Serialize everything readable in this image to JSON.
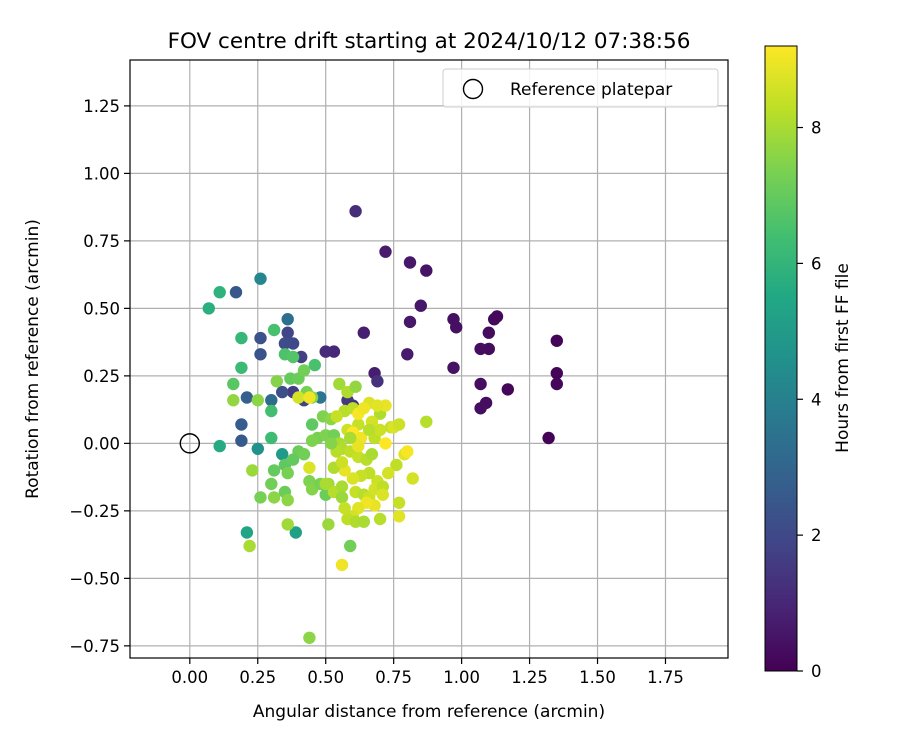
{
  "chart_data": {
    "type": "scatter",
    "title": "FOV centre drift starting at 2024/10/12 07:38:56",
    "xlabel": "Angular distance from reference (arcmin)",
    "ylabel": "Rotation from reference (arcmin)",
    "xlim": [
      -0.22,
      1.98
    ],
    "ylim": [
      -0.795,
      1.42
    ],
    "x_ticks": [
      0.0,
      0.25,
      0.5,
      0.75,
      1.0,
      1.25,
      1.5,
      1.75
    ],
    "x_tick_labels": [
      "0.00",
      "0.25",
      "0.50",
      "0.75",
      "1.00",
      "1.25",
      "1.50",
      "1.75"
    ],
    "y_ticks": [
      -0.75,
      -0.5,
      -0.25,
      0.0,
      0.25,
      0.5,
      0.75,
      1.0,
      1.25
    ],
    "y_tick_labels": [
      "−0.75",
      "−0.50",
      "−0.25",
      "0.00",
      "0.25",
      "0.50",
      "0.75",
      "1.00",
      "1.25"
    ],
    "grid": true,
    "legend": {
      "placement": "top-right",
      "entries": [
        "Reference platepar"
      ]
    },
    "reference_point": {
      "name": "Reference platepar",
      "x": 0.0,
      "y": 0.0
    },
    "colorbar": {
      "label": "Hours from first FF file",
      "colormap": "viridis",
      "range": [
        0,
        9.2
      ],
      "ticks": [
        0,
        2,
        4,
        6,
        8
      ],
      "tick_labels": [
        "0",
        "2",
        "4",
        "6",
        "8"
      ]
    },
    "points": [
      [
        1.32,
        0.02,
        0.05
      ],
      [
        1.35,
        0.38,
        0.1
      ],
      [
        1.35,
        0.26,
        0.1
      ],
      [
        1.35,
        0.22,
        0.15
      ],
      [
        1.17,
        0.2,
        0.15
      ],
      [
        1.13,
        0.47,
        0.2
      ],
      [
        1.12,
        0.46,
        0.2
      ],
      [
        1.1,
        0.41,
        0.25
      ],
      [
        1.1,
        0.35,
        0.25
      ],
      [
        1.07,
        0.35,
        0.3
      ],
      [
        1.09,
        0.15,
        0.3
      ],
      [
        1.07,
        0.13,
        0.35
      ],
      [
        1.07,
        0.22,
        0.35
      ],
      [
        0.98,
        0.43,
        0.4
      ],
      [
        0.97,
        0.46,
        0.4
      ],
      [
        0.97,
        0.28,
        0.45
      ],
      [
        0.87,
        0.64,
        0.5
      ],
      [
        0.85,
        0.51,
        0.55
      ],
      [
        0.81,
        0.45,
        0.6
      ],
      [
        0.81,
        0.67,
        0.6
      ],
      [
        0.8,
        0.33,
        0.65
      ],
      [
        0.72,
        0.71,
        0.7
      ],
      [
        0.68,
        0.26,
        0.75
      ],
      [
        0.64,
        0.41,
        0.8
      ],
      [
        0.61,
        0.86,
        1.2
      ],
      [
        0.69,
        0.23,
        1.3
      ],
      [
        0.6,
        0.14,
        1.4
      ],
      [
        0.58,
        0.16,
        1.5
      ],
      [
        0.53,
        0.34,
        1.0
      ],
      [
        0.5,
        0.34,
        1.1
      ],
      [
        0.38,
        0.19,
        1.6
      ],
      [
        0.41,
        0.32,
        1.7
      ],
      [
        0.42,
        0.16,
        1.8
      ],
      [
        0.36,
        0.41,
        1.9
      ],
      [
        0.38,
        0.37,
        2.0
      ],
      [
        0.35,
        0.37,
        2.1
      ],
      [
        0.34,
        0.19,
        2.2
      ],
      [
        0.26,
        0.39,
        2.3
      ],
      [
        0.26,
        0.33,
        2.4
      ],
      [
        0.17,
        0.56,
        2.5
      ],
      [
        0.19,
        0.01,
        2.6
      ],
      [
        0.19,
        0.07,
        2.7
      ],
      [
        0.21,
        0.17,
        2.8
      ],
      [
        0.3,
        0.16,
        3.2
      ],
      [
        0.36,
        0.46,
        3.4
      ],
      [
        0.48,
        0.17,
        3.6
      ],
      [
        0.26,
        0.61,
        4.2
      ],
      [
        0.25,
        -0.02,
        4.6
      ],
      [
        0.34,
        -0.04,
        5.0
      ],
      [
        0.39,
        -0.33,
        5.2
      ],
      [
        0.21,
        -0.33,
        5.4
      ],
      [
        0.07,
        0.5,
        5.8
      ],
      [
        0.11,
        -0.01,
        5.6
      ],
      [
        0.11,
        0.56,
        5.9
      ],
      [
        0.19,
        0.39,
        6.1
      ],
      [
        0.19,
        0.28,
        6.2
      ],
      [
        0.3,
        0.02,
        6.3
      ],
      [
        0.3,
        0.12,
        6.4
      ],
      [
        0.31,
        0.42,
        6.5
      ],
      [
        0.35,
        0.33,
        6.6
      ],
      [
        0.38,
        0.32,
        6.7
      ],
      [
        0.45,
        0.07,
        6.9
      ],
      [
        0.46,
        0.29,
        6.5
      ],
      [
        0.16,
        0.22,
        6.8
      ],
      [
        0.37,
        0.24,
        7.0
      ],
      [
        0.4,
        0.24,
        7.1
      ],
      [
        0.42,
        0.27,
        7.2
      ],
      [
        0.43,
        0.19,
        7.3
      ],
      [
        0.45,
        0.17,
        7.5
      ],
      [
        0.49,
        0.1,
        7.4
      ],
      [
        0.52,
        0.09,
        7.6
      ],
      [
        0.47,
        0.02,
        7.3
      ],
      [
        0.5,
        0.03,
        7.4
      ],
      [
        0.53,
        0.03,
        7.2
      ],
      [
        0.4,
        -0.03,
        7.1
      ],
      [
        0.35,
        -0.08,
        6.9
      ],
      [
        0.31,
        -0.1,
        7.0
      ],
      [
        0.36,
        -0.11,
        7.3
      ],
      [
        0.35,
        -0.18,
        7.1
      ],
      [
        0.36,
        -0.21,
        7.6
      ],
      [
        0.38,
        -0.06,
        7.0
      ],
      [
        0.42,
        -0.04,
        7.2
      ],
      [
        0.44,
        -0.14,
        7.4
      ],
      [
        0.45,
        -0.17,
        7.5
      ],
      [
        0.48,
        -0.15,
        7.3
      ],
      [
        0.5,
        -0.19,
        7.1
      ],
      [
        0.3,
        -0.15,
        7.2
      ],
      [
        0.26,
        -0.2,
        7.3
      ],
      [
        0.31,
        -0.2,
        7.6
      ],
      [
        0.23,
        -0.1,
        7.8
      ],
      [
        0.16,
        0.16,
        7.7
      ],
      [
        0.25,
        0.16,
        7.6
      ],
      [
        0.32,
        0.23,
        7.5
      ],
      [
        0.36,
        -0.3,
        7.9
      ],
      [
        0.22,
        -0.38,
        8.0
      ],
      [
        0.51,
        -0.3,
        7.8
      ],
      [
        0.59,
        -0.38,
        7.2
      ],
      [
        0.44,
        -0.72,
        7.6
      ],
      [
        0.55,
        0.22,
        7.9
      ],
      [
        0.58,
        0.19,
        8.1
      ],
      [
        0.61,
        0.21,
        7.7
      ],
      [
        0.57,
        0.12,
        8.2
      ],
      [
        0.6,
        0.13,
        8.3
      ],
      [
        0.62,
        0.07,
        8.4
      ],
      [
        0.58,
        0.05,
        8.5
      ],
      [
        0.55,
        0.0,
        8.0
      ],
      [
        0.56,
        -0.02,
        8.1
      ],
      [
        0.59,
        -0.03,
        8.3
      ],
      [
        0.62,
        -0.05,
        8.4
      ],
      [
        0.65,
        -0.06,
        8.2
      ],
      [
        0.67,
        -0.04,
        8.0
      ],
      [
        0.68,
        0.02,
        8.3
      ],
      [
        0.7,
        0.05,
        8.5
      ],
      [
        0.7,
        0.11,
        8.1
      ],
      [
        0.66,
        0.15,
        8.7
      ],
      [
        0.72,
        0.14,
        8.9
      ],
      [
        0.62,
        0.11,
        9.1
      ],
      [
        0.64,
        0.13,
        9.0
      ],
      [
        0.69,
        0.14,
        8.8
      ],
      [
        0.6,
        0.04,
        9.2
      ],
      [
        0.63,
        0.02,
        9.0
      ],
      [
        0.67,
        0.08,
        8.6
      ],
      [
        0.74,
        0.06,
        8.4
      ],
      [
        0.75,
        0.06,
        8.7
      ],
      [
        0.77,
        0.07,
        8.5
      ],
      [
        0.87,
        0.08,
        8.2
      ],
      [
        0.79,
        -0.04,
        8.8
      ],
      [
        0.8,
        -0.03,
        9.1
      ],
      [
        0.76,
        -0.08,
        8.3
      ],
      [
        0.73,
        -0.11,
        8.6
      ],
      [
        0.69,
        -0.14,
        8.5
      ],
      [
        0.66,
        -0.11,
        8.3
      ],
      [
        0.63,
        -0.12,
        8.4
      ],
      [
        0.6,
        -0.13,
        8.7
      ],
      [
        0.57,
        -0.1,
        8.9
      ],
      [
        0.53,
        -0.09,
        8.1
      ],
      [
        0.51,
        -0.15,
        7.9
      ],
      [
        0.53,
        -0.18,
        8.2
      ],
      [
        0.56,
        -0.16,
        8.0
      ],
      [
        0.56,
        -0.2,
        7.8
      ],
      [
        0.61,
        -0.18,
        8.4
      ],
      [
        0.64,
        -0.19,
        8.2
      ],
      [
        0.66,
        -0.2,
        8.5
      ],
      [
        0.68,
        -0.17,
        8.6
      ],
      [
        0.71,
        -0.16,
        8.3
      ],
      [
        0.71,
        -0.19,
        8.7
      ],
      [
        0.68,
        -0.23,
        8.9
      ],
      [
        0.65,
        -0.22,
        9.0
      ],
      [
        0.62,
        -0.24,
        8.8
      ],
      [
        0.6,
        -0.27,
        8.6
      ],
      [
        0.58,
        -0.28,
        8.3
      ],
      [
        0.61,
        -0.29,
        8.1
      ],
      [
        0.64,
        -0.29,
        8.0
      ],
      [
        0.7,
        -0.28,
        8.2
      ],
      [
        0.77,
        -0.22,
        8.4
      ],
      [
        0.77,
        -0.27,
        8.8
      ],
      [
        0.82,
        -0.13,
        8.6
      ],
      [
        0.56,
        -0.45,
        9.0
      ],
      [
        0.44,
        -0.09,
        8.7
      ],
      [
        0.5,
        -0.15,
        8.0
      ],
      [
        0.54,
        -0.03,
        8.2
      ],
      [
        0.45,
        0.01,
        7.4
      ],
      [
        0.4,
        0.17,
        8.6
      ],
      [
        0.44,
        0.17,
        9.0
      ],
      [
        0.54,
        0.1,
        8.4
      ],
      [
        0.62,
        -0.01,
        8.9
      ],
      [
        0.66,
        0.05,
        8.2
      ],
      [
        0.72,
        0.0,
        9.2
      ],
      [
        0.56,
        -0.07,
        8.5
      ],
      [
        0.59,
        0.02,
        8.0
      ],
      [
        0.57,
        -0.24,
        8.4
      ],
      [
        0.52,
        0.0,
        7.5
      ]
    ]
  }
}
